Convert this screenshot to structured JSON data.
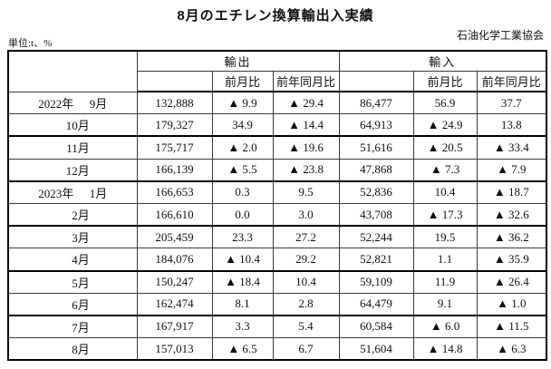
{
  "title": "8月のエチレン換算輸出入実績",
  "unit_label": "単位:t、%",
  "organization": "石油化学工業協会",
  "table": {
    "groups": [
      {
        "label": "輸出",
        "sub": [
          "前月比",
          "前年同月比"
        ]
      },
      {
        "label": "輸入",
        "sub": [
          "前月比",
          "前年同月比"
        ]
      }
    ],
    "rows": [
      {
        "year": "2022年",
        "month": "9月",
        "export": "132,888",
        "export_mom": "▲ 9.9",
        "export_yoy": "▲ 29.4",
        "import": "86,477",
        "import_mom": "56.9",
        "import_yoy": "37.7",
        "group_end": false
      },
      {
        "year": "",
        "month": "10月",
        "export": "179,327",
        "export_mom": "34.9",
        "export_yoy": "▲ 14.4",
        "import": "64,913",
        "import_mom": "▲ 24.9",
        "import_yoy": "13.8",
        "group_end": true
      },
      {
        "year": "",
        "month": "11月",
        "export": "175,717",
        "export_mom": "▲ 2.0",
        "export_yoy": "▲ 19.6",
        "import": "51,616",
        "import_mom": "▲ 20.5",
        "import_yoy": "▲ 33.4",
        "group_end": false
      },
      {
        "year": "",
        "month": "12月",
        "export": "166,139",
        "export_mom": "▲ 5.5",
        "export_yoy": "▲ 23.8",
        "import": "47,868",
        "import_mom": "▲ 7.3",
        "import_yoy": "▲ 7.9",
        "group_end": true
      },
      {
        "year": "2023年",
        "month": "1月",
        "export": "166,653",
        "export_mom": "0.3",
        "export_yoy": "9.5",
        "import": "52,836",
        "import_mom": "10.4",
        "import_yoy": "▲ 18.7",
        "group_end": false
      },
      {
        "year": "",
        "month": "2月",
        "export": "166,610",
        "export_mom": "0.0",
        "export_yoy": "3.0",
        "import": "43,708",
        "import_mom": "▲ 17.3",
        "import_yoy": "▲ 32.6",
        "group_end": true
      },
      {
        "year": "",
        "month": "3月",
        "export": "205,459",
        "export_mom": "23.3",
        "export_yoy": "27.2",
        "import": "52,244",
        "import_mom": "19.5",
        "import_yoy": "▲ 36.2",
        "group_end": false
      },
      {
        "year": "",
        "month": "4月",
        "export": "184,076",
        "export_mom": "▲ 10.4",
        "export_yoy": "29.2",
        "import": "52,821",
        "import_mom": "1.1",
        "import_yoy": "▲ 35.9",
        "group_end": true
      },
      {
        "year": "",
        "month": "5月",
        "export": "150,247",
        "export_mom": "▲ 18.4",
        "export_yoy": "10.4",
        "import": "59,109",
        "import_mom": "11.9",
        "import_yoy": "▲ 26.4",
        "group_end": false
      },
      {
        "year": "",
        "month": "6月",
        "export": "162,474",
        "export_mom": "8.1",
        "export_yoy": "2.8",
        "import": "64,479",
        "import_mom": "9.1",
        "import_yoy": "▲ 1.0",
        "group_end": true
      },
      {
        "year": "",
        "month": "7月",
        "export": "167,917",
        "export_mom": "3.3",
        "export_yoy": "5.4",
        "import": "60,584",
        "import_mom": "▲ 6.0",
        "import_yoy": "▲ 11.5",
        "group_end": false
      },
      {
        "year": "",
        "month": "8月",
        "export": "157,013",
        "export_mom": "▲ 6.5",
        "export_yoy": "6.7",
        "import": "51,604",
        "import_mom": "▲ 14.8",
        "import_yoy": "▲ 6.3",
        "group_end": false
      }
    ]
  }
}
